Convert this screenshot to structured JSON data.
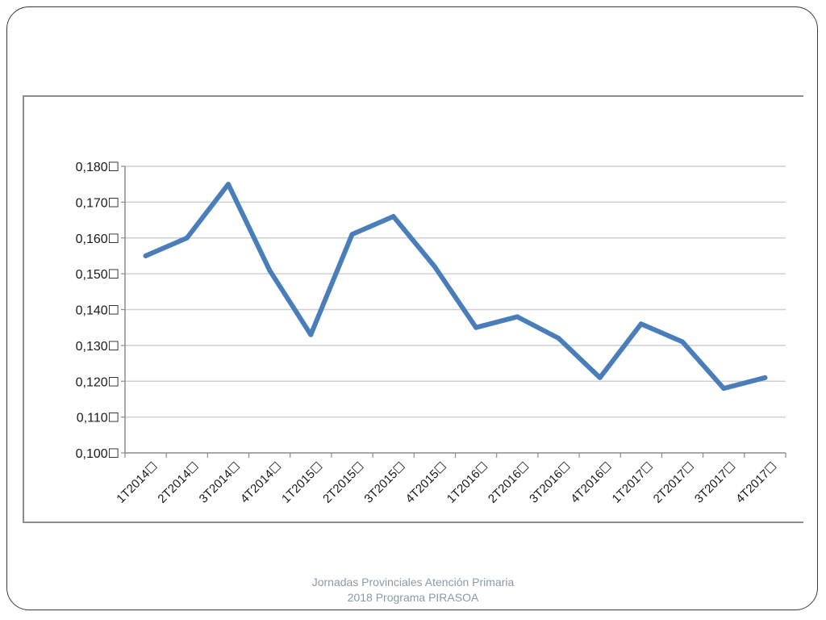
{
  "chart_data": {
    "type": "line",
    "categories": [
      "1T2014☐",
      "2T2014☐",
      "3T2014☐",
      "4T2014☐",
      "1T2015☐",
      "2T2015☐",
      "3T2015☐",
      "4T2015☐",
      "1T2016☐",
      "2T2016☐",
      "3T2016☐",
      "4T2016☐",
      "1T2017☐",
      "2T2017☐",
      "3T2017☐",
      "4T2017☐"
    ],
    "series": [
      {
        "values": [
          0.155,
          0.16,
          0.175,
          0.151,
          0.133,
          0.161,
          0.166,
          0.152,
          0.135,
          0.138,
          0.132,
          0.121,
          0.136,
          0.131,
          0.118,
          0.121
        ]
      }
    ],
    "y_ticks": [
      0.1,
      0.11,
      0.12,
      0.13,
      0.14,
      0.15,
      0.16,
      0.17,
      0.18
    ],
    "y_tick_labels": [
      "0,100☐",
      "0,110☐",
      "0,120☐",
      "0,130☐",
      "0,140☐",
      "0,150☐",
      "0,160☐",
      "0,170☐",
      "0,180☐"
    ],
    "ylim": [
      0.1,
      0.18
    ],
    "grid": true,
    "line_color": "#4a7ebb",
    "grid_color": "#cfcfcf",
    "axis_color": "#8c8c8c"
  },
  "footer": {
    "line1": "Jornadas Provinciales Atención Primaria",
    "line2": "2018  Programa PIRASOA"
  }
}
